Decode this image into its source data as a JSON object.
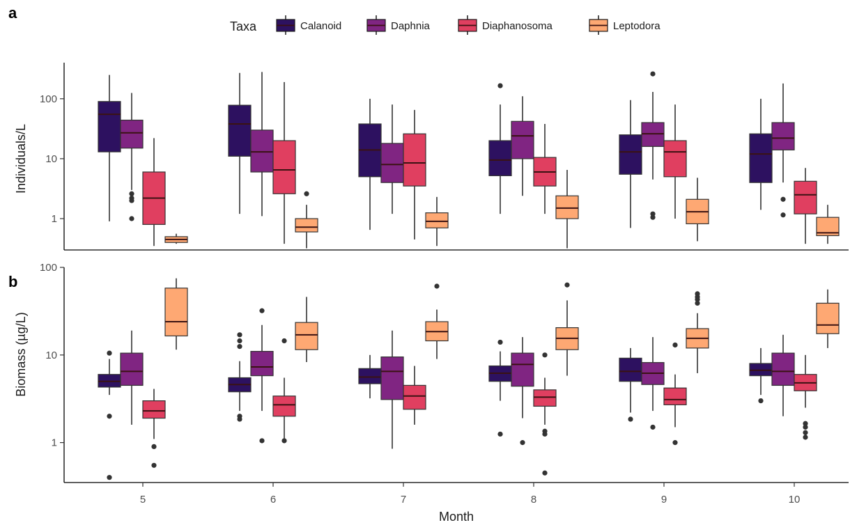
{
  "panel_tags": [
    "a",
    "b"
  ],
  "legend": {
    "title": "Taxa",
    "items": [
      {
        "label": "Calanoid",
        "color": "#2d1160"
      },
      {
        "label": "Daphnia",
        "color": "#802582"
      },
      {
        "label": "Diaphanosoma",
        "color": "#e03f60"
      },
      {
        "label": "Leptodora",
        "color": "#fea873"
      }
    ]
  },
  "x_axis": {
    "title": "Month",
    "ticks": [
      "5",
      "6",
      "7",
      "8",
      "9",
      "10"
    ]
  },
  "chart_data": [
    {
      "type": "box",
      "panel": "a",
      "title": "",
      "xlabel": "",
      "ylabel": "Individuals/L",
      "y_scale": "log",
      "ylim": [
        0.3,
        400
      ],
      "yticks": [
        1,
        10,
        100
      ],
      "ytick_labels": [
        "1",
        "10",
        "100"
      ],
      "categories": [
        "5",
        "6",
        "7",
        "8",
        "9",
        "10"
      ],
      "series": [
        {
          "name": "Calanoid",
          "boxes": [
            {
              "whisker_low": 0.9,
              "q1": 13,
              "median": 55,
              "q3": 90,
              "whisker_high": 250,
              "outliers": []
            },
            {
              "whisker_low": 1.2,
              "q1": 11,
              "median": 38,
              "q3": 78,
              "whisker_high": 270,
              "outliers": []
            },
            {
              "whisker_low": 0.65,
              "q1": 5,
              "median": 14,
              "q3": 38,
              "whisker_high": 100,
              "outliers": []
            },
            {
              "whisker_low": 1.2,
              "q1": 5.2,
              "median": 9.5,
              "q3": 20,
              "whisker_high": 80,
              "outliers": [
                165
              ]
            },
            {
              "whisker_low": 0.7,
              "q1": 5.5,
              "median": 13,
              "q3": 25,
              "whisker_high": 95,
              "outliers": []
            },
            {
              "whisker_low": 1.4,
              "q1": 4,
              "median": 12,
              "q3": 26,
              "whisker_high": 100,
              "outliers": []
            }
          ]
        },
        {
          "name": "Daphnia",
          "boxes": [
            {
              "whisker_low": 3,
              "q1": 15,
              "median": 27,
              "q3": 44,
              "whisker_high": 125,
              "outliers": [
                2.6,
                2.2,
                2.0,
                1.0
              ]
            },
            {
              "whisker_low": 1.1,
              "q1": 6,
              "median": 13,
              "q3": 30,
              "whisker_high": 280,
              "outliers": []
            },
            {
              "whisker_low": 1.2,
              "q1": 4,
              "median": 8,
              "q3": 18,
              "whisker_high": 80,
              "outliers": []
            },
            {
              "whisker_low": 2.4,
              "q1": 10,
              "median": 24,
              "q3": 42,
              "whisker_high": 110,
              "outliers": []
            },
            {
              "whisker_low": 4.5,
              "q1": 16,
              "median": 26,
              "q3": 40,
              "whisker_high": 130,
              "outliers": [
                260,
                1.2,
                1.05
              ]
            },
            {
              "whisker_low": 4,
              "q1": 14,
              "median": 22,
              "q3": 40,
              "whisker_high": 180,
              "outliers": [
                2.1,
                1.15
              ]
            }
          ]
        },
        {
          "name": "Diaphanosoma",
          "boxes": [
            {
              "whisker_low": 0.35,
              "q1": 0.8,
              "median": 2.2,
              "q3": 6,
              "whisker_high": 22,
              "outliers": []
            },
            {
              "whisker_low": 0.38,
              "q1": 2.6,
              "median": 6.5,
              "q3": 20,
              "whisker_high": 190,
              "outliers": []
            },
            {
              "whisker_low": 0.45,
              "q1": 3.5,
              "median": 8.5,
              "q3": 26,
              "whisker_high": 65,
              "outliers": []
            },
            {
              "whisker_low": 1.2,
              "q1": 3.5,
              "median": 6,
              "q3": 10.5,
              "whisker_high": 38,
              "outliers": []
            },
            {
              "whisker_low": 1.0,
              "q1": 5,
              "median": 13,
              "q3": 20,
              "whisker_high": 80,
              "outliers": []
            },
            {
              "whisker_low": 0.38,
              "q1": 1.2,
              "median": 2.5,
              "q3": 4.2,
              "whisker_high": 7,
              "outliers": []
            }
          ]
        },
        {
          "name": "Leptodora",
          "boxes": [
            {
              "whisker_low": 0.38,
              "q1": 0.4,
              "median": 0.45,
              "q3": 0.5,
              "whisker_high": 0.56,
              "outliers": []
            },
            {
              "whisker_low": 0.32,
              "q1": 0.6,
              "median": 0.72,
              "q3": 1.0,
              "whisker_high": 1.7,
              "outliers": [
                2.6
              ]
            },
            {
              "whisker_low": 0.35,
              "q1": 0.7,
              "median": 0.9,
              "q3": 1.25,
              "whisker_high": 2.3,
              "outliers": []
            },
            {
              "whisker_low": 0.32,
              "q1": 1.0,
              "median": 1.5,
              "q3": 2.4,
              "whisker_high": 6.5,
              "outliers": []
            },
            {
              "whisker_low": 0.42,
              "q1": 0.82,
              "median": 1.3,
              "q3": 2.1,
              "whisker_high": 4.8,
              "outliers": []
            },
            {
              "whisker_low": 0.38,
              "q1": 0.52,
              "median": 0.58,
              "q3": 1.05,
              "whisker_high": 1.7,
              "outliers": []
            }
          ]
        }
      ]
    },
    {
      "type": "box",
      "panel": "b",
      "title": "",
      "xlabel": "Month",
      "ylabel": "Biomass (µg/L)",
      "y_scale": "log",
      "ylim": [
        0.35,
        100
      ],
      "yticks": [
        1,
        10,
        100
      ],
      "ytick_labels": [
        "1",
        "10",
        "100"
      ],
      "categories": [
        "5",
        "6",
        "7",
        "8",
        "9",
        "10"
      ],
      "series": [
        {
          "name": "Calanoid",
          "boxes": [
            {
              "whisker_low": 3.5,
              "q1": 4.3,
              "median": 5.0,
              "q3": 6.0,
              "whisker_high": 9,
              "outliers": [
                10.5,
                2.0,
                0.4
              ]
            },
            {
              "whisker_low": 2.3,
              "q1": 3.8,
              "median": 4.6,
              "q3": 5.5,
              "whisker_high": 8.5,
              "outliers": [
                17,
                14.5,
                12.5,
                2.0,
                1.85
              ]
            },
            {
              "whisker_low": 3.2,
              "q1": 4.7,
              "median": 5.6,
              "q3": 7.0,
              "whisker_high": 10,
              "outliers": []
            },
            {
              "whisker_low": 3.0,
              "q1": 5.0,
              "median": 6.2,
              "q3": 7.5,
              "whisker_high": 11,
              "outliers": [
                14,
                1.25
              ]
            },
            {
              "whisker_low": 2.2,
              "q1": 5.0,
              "median": 6.5,
              "q3": 9.2,
              "whisker_high": 12,
              "outliers": [
                1.85
              ]
            },
            {
              "whisker_low": 3.5,
              "q1": 5.8,
              "median": 6.7,
              "q3": 8.0,
              "whisker_high": 12,
              "outliers": [
                3.0
              ]
            }
          ]
        },
        {
          "name": "Daphnia",
          "boxes": [
            {
              "whisker_low": 1.6,
              "q1": 4.5,
              "median": 6.5,
              "q3": 10.5,
              "whisker_high": 19,
              "outliers": []
            },
            {
              "whisker_low": 2.3,
              "q1": 5.8,
              "median": 7.3,
              "q3": 11,
              "whisker_high": 22,
              "outliers": [
                32,
                1.05
              ]
            },
            {
              "whisker_low": 0.85,
              "q1": 3.1,
              "median": 6.5,
              "q3": 9.5,
              "whisker_high": 19,
              "outliers": []
            },
            {
              "whisker_low": 1.9,
              "q1": 4.4,
              "median": 7.8,
              "q3": 10.5,
              "whisker_high": 16,
              "outliers": [
                1.0
              ]
            },
            {
              "whisker_low": 2.3,
              "q1": 4.6,
              "median": 6.2,
              "q3": 8.2,
              "whisker_high": 16,
              "outliers": [
                1.5
              ]
            },
            {
              "whisker_low": 2.0,
              "q1": 4.5,
              "median": 6.5,
              "q3": 10.5,
              "whisker_high": 17,
              "outliers": []
            }
          ]
        },
        {
          "name": "Diaphanosoma",
          "boxes": [
            {
              "whisker_low": 1.1,
              "q1": 1.9,
              "median": 2.3,
              "q3": 3.0,
              "whisker_high": 4.1,
              "outliers": [
                0.9,
                0.55
              ]
            },
            {
              "whisker_low": 1.0,
              "q1": 2.0,
              "median": 2.7,
              "q3": 3.4,
              "whisker_high": 5.5,
              "outliers": [
                14.5,
                1.05
              ]
            },
            {
              "whisker_low": 1.6,
              "q1": 2.4,
              "median": 3.4,
              "q3": 4.5,
              "whisker_high": 7.5,
              "outliers": []
            },
            {
              "whisker_low": 1.6,
              "q1": 2.6,
              "median": 3.3,
              "q3": 4.0,
              "whisker_high": 5.5,
              "outliers": [
                10,
                1.35,
                1.25,
                0.45
              ]
            },
            {
              "whisker_low": 1.5,
              "q1": 2.7,
              "median": 3.1,
              "q3": 4.2,
              "whisker_high": 6,
              "outliers": [
                13,
                1.0
              ]
            },
            {
              "whisker_low": 2.5,
              "q1": 3.9,
              "median": 4.8,
              "q3": 6.0,
              "whisker_high": 10,
              "outliers": [
                1.65,
                1.5,
                1.3,
                1.15
              ]
            }
          ]
        },
        {
          "name": "Leptodora",
          "boxes": [
            {
              "whisker_low": 11.5,
              "q1": 16.5,
              "median": 24,
              "q3": 58,
              "whisker_high": 75,
              "outliers": []
            },
            {
              "whisker_low": 8.3,
              "q1": 11.5,
              "median": 17,
              "q3": 23.5,
              "whisker_high": 46,
              "outliers": []
            },
            {
              "whisker_low": 9.0,
              "q1": 14.5,
              "median": 18.5,
              "q3": 24,
              "whisker_high": 33,
              "outliers": [
                61
              ]
            },
            {
              "whisker_low": 5.8,
              "q1": 11.5,
              "median": 15.5,
              "q3": 20.5,
              "whisker_high": 42,
              "outliers": [
                63
              ]
            },
            {
              "whisker_low": 6.2,
              "q1": 12,
              "median": 15.5,
              "q3": 20,
              "whisker_high": 30,
              "outliers": [
                50,
                46,
                43,
                39
              ]
            },
            {
              "whisker_low": 12,
              "q1": 17.5,
              "median": 22,
              "q3": 39,
              "whisker_high": 56,
              "outliers": []
            }
          ]
        }
      ]
    }
  ]
}
